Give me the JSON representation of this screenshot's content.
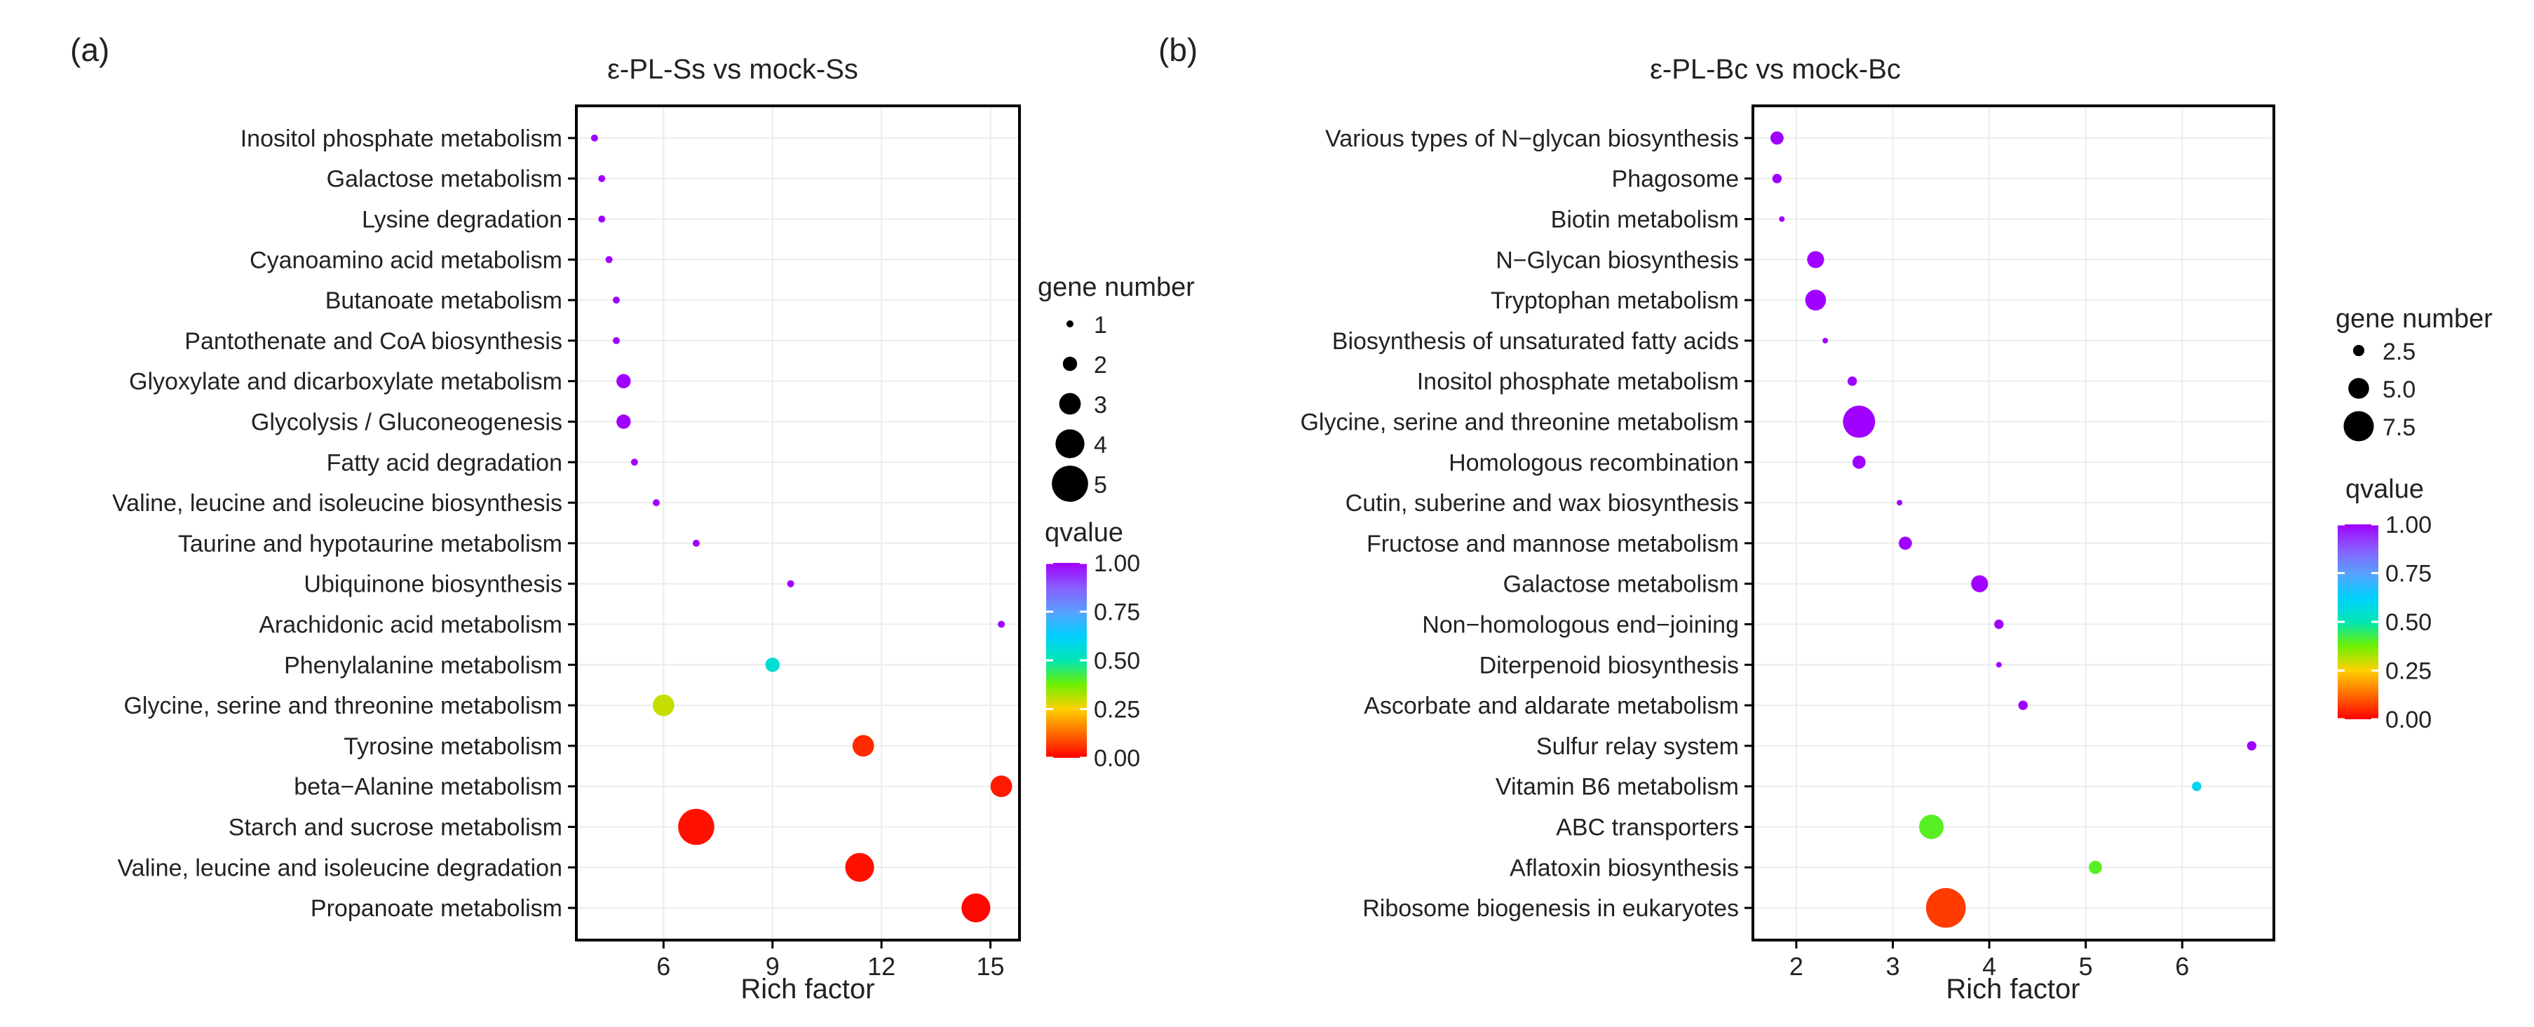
{
  "chart_data": [
    {
      "type": "scatter",
      "panel_label": "(a)",
      "title": "ε-PL-Ss vs mock-Ss",
      "xlabel": "Rich factor",
      "ylabel": "",
      "xlim": [
        3.6,
        15.8
      ],
      "xticks": [
        6,
        9,
        12,
        15
      ],
      "categories": [
        "Inositol phosphate metabolism",
        "Galactose metabolism",
        "Lysine degradation",
        "Cyanoamino acid metabolism",
        "Butanoate metabolism",
        "Pantothenate and CoA biosynthesis",
        "Glyoxylate and dicarboxylate metabolism",
        "Glycolysis / Gluconeogenesis",
        "Fatty acid degradation",
        "Valine, leucine and isoleucine biosynthesis",
        "Taurine and hypotaurine metabolism",
        "Ubiquinone biosynthesis",
        "Arachidonic acid metabolism",
        "Phenylalanine metabolism",
        "Glycine, serine and threonine metabolism",
        "Tyrosine metabolism",
        "beta−Alanine metabolism",
        "Starch and sucrose metabolism",
        "Valine, leucine and isoleucine degradation",
        "Propanoate metabolism"
      ],
      "points": [
        {
          "rich_factor": 4.1,
          "gene_number": 1,
          "qvalue": 1.0
        },
        {
          "rich_factor": 4.3,
          "gene_number": 1,
          "qvalue": 1.0
        },
        {
          "rich_factor": 4.3,
          "gene_number": 1,
          "qvalue": 1.0
        },
        {
          "rich_factor": 4.5,
          "gene_number": 1,
          "qvalue": 1.0
        },
        {
          "rich_factor": 4.7,
          "gene_number": 1,
          "qvalue": 1.0
        },
        {
          "rich_factor": 4.7,
          "gene_number": 1,
          "qvalue": 1.0
        },
        {
          "rich_factor": 4.9,
          "gene_number": 2,
          "qvalue": 1.0
        },
        {
          "rich_factor": 4.9,
          "gene_number": 2,
          "qvalue": 1.0
        },
        {
          "rich_factor": 5.2,
          "gene_number": 1,
          "qvalue": 1.0
        },
        {
          "rich_factor": 5.8,
          "gene_number": 1,
          "qvalue": 1.0
        },
        {
          "rich_factor": 6.9,
          "gene_number": 1,
          "qvalue": 1.0
        },
        {
          "rich_factor": 9.5,
          "gene_number": 1,
          "qvalue": 1.0
        },
        {
          "rich_factor": 15.3,
          "gene_number": 1,
          "qvalue": 1.0
        },
        {
          "rich_factor": 9.0,
          "gene_number": 2,
          "qvalue": 0.55
        },
        {
          "rich_factor": 6.0,
          "gene_number": 3,
          "qvalue": 0.3
        },
        {
          "rich_factor": 11.5,
          "gene_number": 3,
          "qvalue": 0.05
        },
        {
          "rich_factor": 15.3,
          "gene_number": 3,
          "qvalue": 0.03
        },
        {
          "rich_factor": 6.9,
          "gene_number": 5,
          "qvalue": 0.02
        },
        {
          "rich_factor": 11.4,
          "gene_number": 4,
          "qvalue": 0.02
        },
        {
          "rich_factor": 14.6,
          "gene_number": 4,
          "qvalue": 0.01
        }
      ],
      "size_legend": {
        "title": "gene number",
        "values": [
          1,
          2,
          3,
          4,
          5
        ],
        "labels": [
          "1",
          "2",
          "3",
          "4",
          "5"
        ]
      },
      "color_legend": {
        "title": "qvalue",
        "ticks": [
          "1.00",
          "0.75",
          "0.50",
          "0.25",
          "0.00"
        ],
        "range": [
          0,
          1
        ]
      },
      "grid": true
    },
    {
      "type": "scatter",
      "panel_label": "(b)",
      "title": "ε-PL-Bc vs mock-Bc",
      "xlabel": "Rich factor",
      "ylabel": "",
      "xlim": [
        1.55,
        6.95
      ],
      "xticks": [
        2,
        3,
        4,
        5,
        6
      ],
      "categories": [
        "Various types of N−glycan biosynthesis",
        "Phagosome",
        "Biotin metabolism",
        "N−Glycan biosynthesis",
        "Tryptophan metabolism",
        "Biosynthesis of unsaturated fatty acids",
        "Inositol phosphate metabolism",
        "Glycine, serine and threonine metabolism",
        "Homologous recombination",
        "Cutin, suberine and wax biosynthesis",
        "Fructose and mannose metabolism",
        "Galactose metabolism",
        "Non−homologous end−joining",
        "Diterpenoid biosynthesis",
        "Ascorbate and aldarate metabolism",
        "Sulfur relay system",
        "Vitamin B6 metabolism",
        "ABC transporters",
        "Aflatoxin biosynthesis",
        "Ribosome biogenesis in eukaryotes"
      ],
      "points": [
        {
          "rich_factor": 1.8,
          "gene_number": 3,
          "qvalue": 1.0
        },
        {
          "rich_factor": 1.8,
          "gene_number": 2,
          "qvalue": 1.0
        },
        {
          "rich_factor": 1.85,
          "gene_number": 1,
          "qvalue": 1.0
        },
        {
          "rich_factor": 2.2,
          "gene_number": 4,
          "qvalue": 1.0
        },
        {
          "rich_factor": 2.2,
          "gene_number": 5,
          "qvalue": 1.0
        },
        {
          "rich_factor": 2.3,
          "gene_number": 1,
          "qvalue": 1.0
        },
        {
          "rich_factor": 2.58,
          "gene_number": 2,
          "qvalue": 1.0
        },
        {
          "rich_factor": 2.65,
          "gene_number": 8,
          "qvalue": 1.0
        },
        {
          "rich_factor": 2.65,
          "gene_number": 3,
          "qvalue": 1.0
        },
        {
          "rich_factor": 3.07,
          "gene_number": 1,
          "qvalue": 1.0
        },
        {
          "rich_factor": 3.13,
          "gene_number": 3,
          "qvalue": 1.0
        },
        {
          "rich_factor": 3.9,
          "gene_number": 4,
          "qvalue": 1.0
        },
        {
          "rich_factor": 4.1,
          "gene_number": 2,
          "qvalue": 1.0
        },
        {
          "rich_factor": 4.1,
          "gene_number": 1,
          "qvalue": 1.0
        },
        {
          "rich_factor": 4.35,
          "gene_number": 2,
          "qvalue": 1.0
        },
        {
          "rich_factor": 6.72,
          "gene_number": 2,
          "qvalue": 1.0
        },
        {
          "rich_factor": 6.15,
          "gene_number": 2,
          "qvalue": 0.6
        },
        {
          "rich_factor": 3.4,
          "gene_number": 6,
          "qvalue": 0.4
        },
        {
          "rich_factor": 5.1,
          "gene_number": 3,
          "qvalue": 0.4
        },
        {
          "rich_factor": 3.55,
          "gene_number": 10,
          "qvalue": 0.07
        }
      ],
      "size_legend": {
        "title": "gene number",
        "values": [
          2.5,
          5.0,
          7.5
        ],
        "labels": [
          "2.5",
          "5.0",
          "7.5"
        ]
      },
      "color_legend": {
        "title": "qvalue",
        "ticks": [
          "1.00",
          "0.75",
          "0.50",
          "0.25",
          "0.00"
        ],
        "range": [
          0,
          1
        ]
      },
      "grid": true
    }
  ]
}
